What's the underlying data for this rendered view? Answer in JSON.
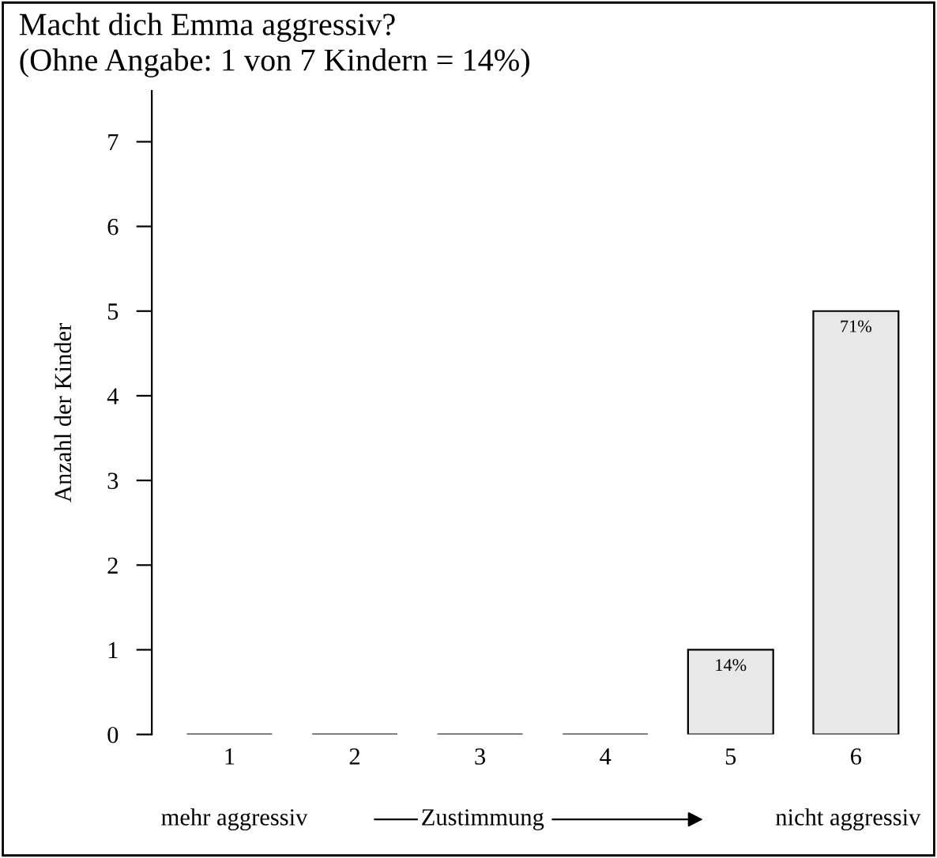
{
  "chart_data": {
    "type": "bar",
    "title": "Macht dich Emma aggressiv?\n(Ohne Angabe: 1 von 7 Kindern = 14%)",
    "categories": [
      "1",
      "2",
      "3",
      "4",
      "5",
      "6"
    ],
    "values": [
      0,
      0,
      0,
      0,
      1,
      5
    ],
    "color": "#e8e8e8",
    "ylabel": "Anzahl der Kinder",
    "xlabel": "Zustimmung",
    "annotations": [
      "mehr aggressiv",
      "nicht aggressiv",
      {
        "text": "14%",
        "x": "5",
        "y": 1
      },
      {
        "text": "71%",
        "x": "6",
        "y": 5
      }
    ],
    "ylim": [
      0,
      7.6
    ],
    "yticks": [
      0,
      1,
      2,
      3,
      4,
      5,
      6,
      7
    ],
    "grid": false,
    "legend": false
  }
}
